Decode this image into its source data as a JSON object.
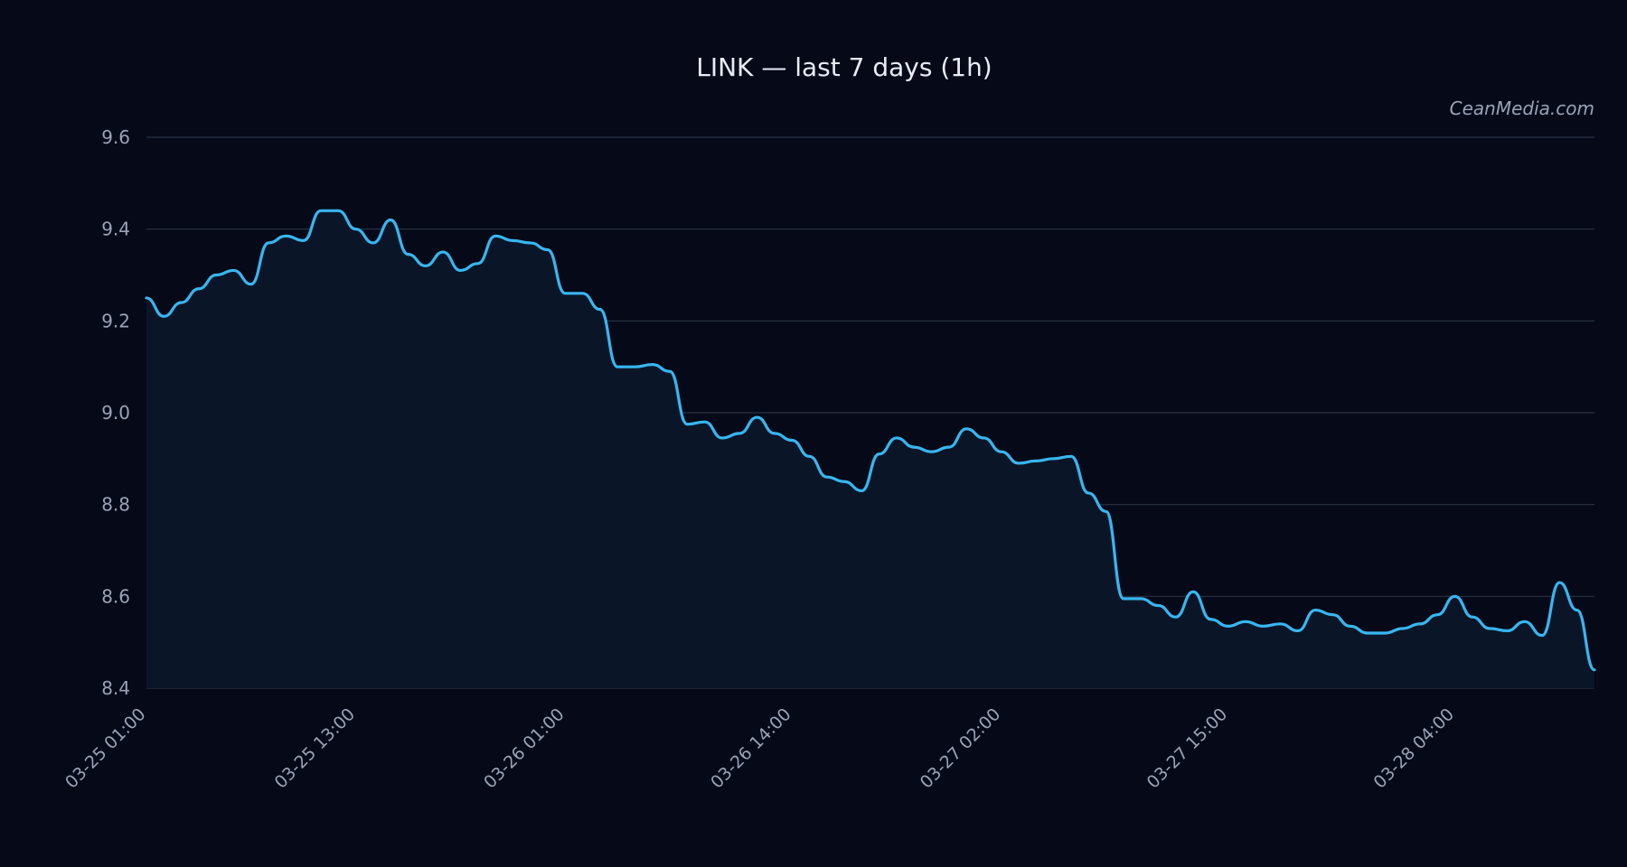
{
  "chart_data": {
    "type": "area",
    "title": "LINK — last 7 days (1h)",
    "watermark": "CeanMedia.com",
    "xlabel": "",
    "ylabel": "",
    "ylim": [
      8.4,
      9.6
    ],
    "y_ticks": [
      "9.6",
      "9.4",
      "9.2",
      "9.0",
      "8.8",
      "8.6",
      "8.4"
    ],
    "x_tick_labels": [
      "03-25 01:00",
      "03-25 13:00",
      "03-26 01:00",
      "03-26 14:00",
      "03-27 02:00",
      "03-27 15:00",
      "03-28 04:00"
    ],
    "x_tick_index": [
      0,
      12,
      24,
      37,
      49,
      62,
      75
    ],
    "grid": true,
    "legend": "none",
    "colors": {
      "line": "#38b6f0",
      "fill": "#0a1628",
      "background": "#050918",
      "grid": "#2a3344"
    },
    "series": [
      {
        "values": [
          9.25,
          9.21,
          9.24,
          9.27,
          9.3,
          9.31,
          9.28,
          9.37,
          9.385,
          9.375,
          9.44,
          9.44,
          9.4,
          9.37,
          9.42,
          9.345,
          9.32,
          9.35,
          9.31,
          9.325,
          9.385,
          9.375,
          9.37,
          9.355,
          9.26,
          9.26,
          9.225,
          9.1,
          9.1,
          9.105,
          9.09,
          8.975,
          8.98,
          8.945,
          8.955,
          8.99,
          8.955,
          8.94,
          8.905,
          8.86,
          8.85,
          8.83,
          8.91,
          8.945,
          8.925,
          8.915,
          8.925,
          8.965,
          8.945,
          8.915,
          8.89,
          8.895,
          8.9,
          8.905,
          8.825,
          8.785,
          8.595,
          8.595,
          8.58,
          8.555,
          8.61,
          8.55,
          8.535,
          8.545,
          8.535,
          8.54,
          8.525,
          8.57,
          8.56,
          8.535,
          8.52,
          8.52,
          8.53,
          8.54,
          8.56,
          8.6,
          8.555,
          8.53,
          8.525,
          8.545,
          8.515,
          8.63,
          8.57,
          8.44
        ]
      }
    ]
  }
}
